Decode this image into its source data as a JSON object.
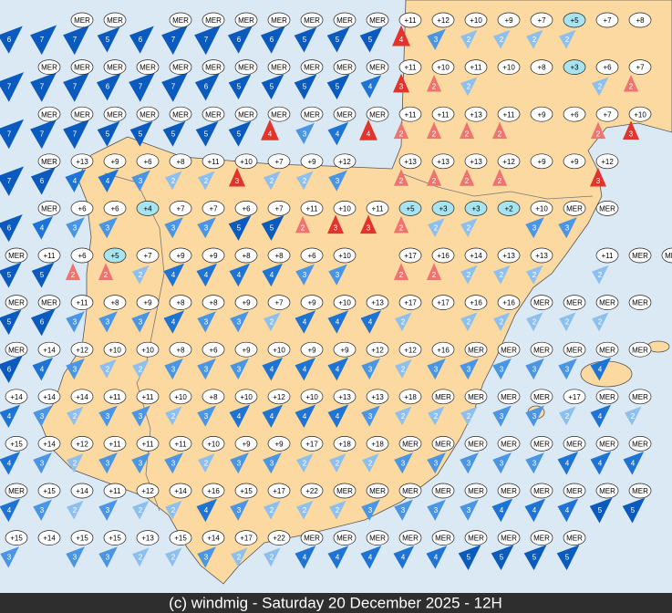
{
  "map": {
    "footer": "(c) windmig - Saturday 20 December 2025 - 12H",
    "rows": [
      {
        "labels": [
          null,
          null,
          "MER",
          "MER",
          null,
          "MER",
          "MER",
          "MER",
          "MER",
          "MER",
          "MER",
          "MER",
          "+11",
          "+12",
          "+10",
          "+9",
          "+7",
          "+5",
          "+7",
          "+8"
        ],
        "winds": [
          "6",
          "7",
          "7",
          "5",
          "6",
          "7",
          "7",
          "6",
          "6",
          "5",
          "5",
          "5",
          "4",
          "3",
          "2",
          "2",
          "2",
          "2",
          null,
          null
        ],
        "red": [
          12
        ]
      },
      {
        "labels": [
          null,
          "MER",
          "MER",
          "MER",
          "MER",
          "MER",
          "MER",
          "MER",
          "MER",
          "MER",
          "MER",
          "MER",
          "+11",
          "+10",
          "+11",
          "+10",
          "+8",
          "+3",
          "+6",
          "+7"
        ],
        "winds": [
          "7",
          "7",
          "7",
          "6",
          "7",
          "7",
          "6",
          "5",
          "5",
          "5",
          "5",
          "4",
          "3",
          "2",
          "2",
          null,
          null,
          null,
          "2",
          "2"
        ],
        "red": [
          12,
          13,
          19
        ]
      },
      {
        "labels": [
          null,
          "MER",
          "MER",
          "MER",
          "MER",
          "MER",
          "MER",
          "MER",
          "MER",
          "MER",
          "MER",
          "MER",
          "+11",
          "+11",
          "+13",
          "+11",
          "+9",
          "+6",
          "+7",
          "+10"
        ],
        "winds": [
          "7",
          "7",
          "7",
          "5",
          "5",
          "5",
          "5",
          "5",
          "4",
          "3",
          "4",
          "4",
          "2",
          "2",
          "2",
          "2",
          null,
          null,
          "2",
          "3"
        ],
        "red": [
          8,
          11,
          12,
          13,
          14,
          15,
          18,
          19
        ]
      },
      {
        "labels": [
          null,
          "MER",
          "+13",
          "+9",
          "+6",
          "+8",
          "+11",
          "+10",
          "+7",
          "+9",
          "+12",
          null,
          "+13",
          "+13",
          "+13",
          "+12",
          "+9",
          "+9",
          "+12"
        ],
        "winds": [
          "7",
          "6",
          "4",
          "4",
          "3",
          "2",
          "2",
          "3",
          "2",
          "2",
          "3",
          null,
          "2",
          "2",
          "2",
          "2",
          null,
          null,
          "3"
        ],
        "red": [
          7,
          12,
          13,
          14,
          15,
          18
        ]
      },
      {
        "labels": [
          null,
          "MER",
          "+6",
          "+6",
          "+4",
          "+7",
          "+7",
          "+6",
          "+7",
          "+11",
          "+10",
          "+11",
          "+5",
          "+3",
          "+3",
          "+2",
          "+10",
          "MER",
          "MER"
        ],
        "winds": [
          "6",
          "4",
          "3",
          "3",
          null,
          "3",
          "3",
          "5",
          "5",
          "2",
          "3",
          "3",
          "2",
          "2",
          "2",
          null,
          "3",
          "3",
          null
        ],
        "red": [
          9,
          10,
          11,
          12
        ]
      },
      {
        "labels": [
          "MER",
          "+11",
          "+6",
          "+5",
          "+7",
          "+9",
          "+9",
          "+8",
          "+8",
          "+6",
          "+10",
          null,
          "+17",
          "+16",
          "+14",
          "+13",
          "+13",
          null,
          "+11",
          "MER",
          "MER"
        ],
        "winds": [
          "5",
          "5",
          "2",
          "2",
          "2",
          "4",
          "4",
          "4",
          "4",
          "3",
          "3",
          null,
          "2",
          "2",
          "2",
          "2",
          "2",
          null,
          "2",
          null,
          null
        ],
        "red": [
          2,
          3,
          12,
          13
        ]
      },
      {
        "labels": [
          "MER",
          "MER",
          "+11",
          "+8",
          "+9",
          "+8",
          "+8",
          "+9",
          "+7",
          "+9",
          "+10",
          "+13",
          "+17",
          "+17",
          "+16",
          "+16",
          "MER",
          "MER",
          "MER",
          "MER"
        ],
        "winds": [
          "5",
          "6",
          "3",
          "3",
          "3",
          "4",
          "3",
          "3",
          "2",
          "4",
          "4",
          "4",
          "2",
          null,
          "2",
          "2",
          "2",
          "2",
          "2",
          null
        ],
        "red": []
      },
      {
        "labels": [
          "MER",
          "+14",
          "+12",
          "+10",
          "+10",
          "+8",
          "+6",
          "+9",
          "+10",
          "+9",
          "+9",
          "+12",
          "+12",
          "+16",
          "MER",
          "MER",
          "MER",
          "MER",
          "MER",
          "MER"
        ],
        "winds": [
          "6",
          "4",
          "3",
          "2",
          "2",
          "3",
          "3",
          "3",
          "4",
          "4",
          "4",
          "3",
          "2",
          "3",
          "3",
          "3",
          "3",
          "3",
          "4",
          null
        ],
        "red": []
      },
      {
        "labels": [
          "+14",
          "+14",
          "+14",
          "+11",
          "+11",
          "+10",
          "+8",
          "+10",
          "+12",
          "+10",
          "+13",
          "+13",
          "+18",
          "MER",
          "MER",
          "MER",
          "MER",
          "+17",
          "MER",
          "MER"
        ],
        "winds": [
          "4",
          "3",
          "2",
          "3",
          "3",
          "2",
          "3",
          "4",
          "4",
          "4",
          "4",
          "3",
          "2",
          "2",
          "2",
          "3",
          "3",
          "2",
          "4",
          "2"
        ],
        "red": []
      },
      {
        "labels": [
          "+15",
          "+14",
          "+12",
          "+11",
          "+11",
          "+11",
          "+10",
          "+9",
          "+9",
          "+17",
          "+18",
          "+18",
          "MER",
          "MER",
          "MER",
          "MER",
          "MER",
          "MER",
          "MER",
          "MER"
        ],
        "winds": [
          "4",
          "3",
          "2",
          "3",
          "3",
          "3",
          "2",
          "3",
          "3",
          "2",
          "2",
          "2",
          "3",
          "3",
          "3",
          "3",
          "3",
          "4",
          "4",
          "4"
        ],
        "red": []
      },
      {
        "labels": [
          "MER",
          "+15",
          "+14",
          "+11",
          "+12",
          "+14",
          "+16",
          "+15",
          "+17",
          "+22",
          "MER",
          "MER",
          "MER",
          "MER",
          "MER",
          "MER",
          "MER",
          "MER",
          "MER",
          "MER"
        ],
        "winds": [
          "4",
          "3",
          "2",
          "3",
          "2",
          "2",
          "4",
          "3",
          "2",
          "2",
          "2",
          "3",
          "3",
          "3",
          "3",
          "4",
          "4",
          "4",
          "5",
          "5"
        ],
        "red": []
      },
      {
        "labels": [
          "+15",
          "+14",
          "+15",
          "+15",
          "+13",
          "+15",
          "+14",
          "+17",
          "+22",
          "MER",
          "MER",
          "MER",
          "MER",
          "MER",
          "MER",
          "MER",
          "MER",
          "MER"
        ],
        "winds": [
          "3",
          null,
          "3",
          "3",
          "2",
          "2",
          "3",
          "2",
          "2",
          "4",
          "4",
          "4",
          "4",
          "4",
          "5",
          "5",
          "5",
          "5"
        ],
        "red": []
      }
    ]
  }
}
